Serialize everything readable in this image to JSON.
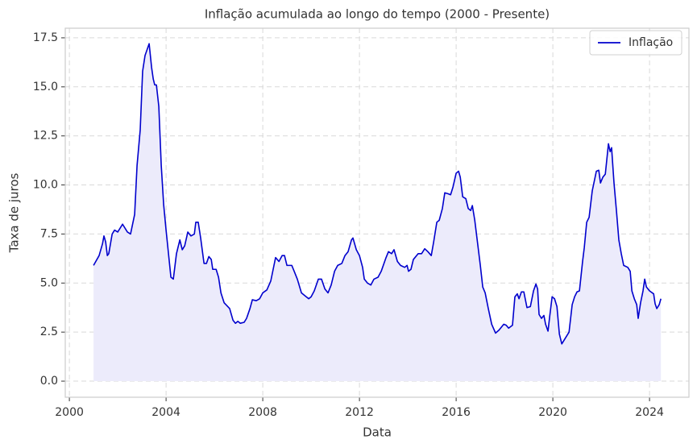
{
  "chart_data": {
    "type": "line",
    "title": "Inflação acumulada ao longo do tempo (2000 - Presente)",
    "xlabel": "Data",
    "ylabel": "Taxa de juros",
    "x": [
      2001.0,
      2001.23,
      2001.37,
      2001.43,
      2001.5,
      2001.57,
      2001.63,
      2001.77,
      2001.87,
      2002.0,
      2002.2,
      2002.4,
      2002.53,
      2002.7,
      2002.8,
      2002.93,
      2003.03,
      2003.13,
      2003.3,
      2003.4,
      2003.47,
      2003.53,
      2003.6,
      2003.7,
      2003.8,
      2003.9,
      2004.0,
      2004.1,
      2004.2,
      2004.3,
      2004.43,
      2004.57,
      2004.67,
      2004.77,
      2004.9,
      2005.03,
      2005.17,
      2005.23,
      2005.33,
      2005.43,
      2005.57,
      2005.67,
      2005.77,
      2005.87,
      2005.93,
      2006.07,
      2006.17,
      2006.27,
      2006.4,
      2006.63,
      2006.77,
      2006.87,
      2006.97,
      2007.07,
      2007.23,
      2007.33,
      2007.47,
      2007.57,
      2007.73,
      2007.87,
      2008.0,
      2008.17,
      2008.33,
      2008.53,
      2008.67,
      2008.8,
      2008.9,
      2009.0,
      2009.2,
      2009.3,
      2009.43,
      2009.6,
      2009.8,
      2009.9,
      2010.0,
      2010.13,
      2010.3,
      2010.43,
      2010.57,
      2010.7,
      2010.83,
      2010.97,
      2011.1,
      2011.27,
      2011.4,
      2011.53,
      2011.67,
      2011.73,
      2011.87,
      2012.0,
      2012.13,
      2012.2,
      2012.33,
      2012.47,
      2012.6,
      2012.77,
      2012.9,
      2013.1,
      2013.2,
      2013.33,
      2013.43,
      2013.57,
      2013.7,
      2013.87,
      2013.97,
      2014.03,
      2014.13,
      2014.23,
      2014.43,
      2014.57,
      2014.7,
      2014.83,
      2014.97,
      2015.07,
      2015.2,
      2015.3,
      2015.43,
      2015.53,
      2015.67,
      2015.77,
      2015.87,
      2016.0,
      2016.1,
      2016.17,
      2016.27,
      2016.4,
      2016.5,
      2016.6,
      2016.67,
      2016.77,
      2016.9,
      2017.0,
      2017.1,
      2017.2,
      2017.33,
      2017.47,
      2017.63,
      2017.77,
      2017.97,
      2018.07,
      2018.17,
      2018.33,
      2018.43,
      2018.53,
      2018.6,
      2018.7,
      2018.8,
      2018.93,
      2019.07,
      2019.2,
      2019.3,
      2019.37,
      2019.43,
      2019.53,
      2019.63,
      2019.7,
      2019.8,
      2019.87,
      2019.97,
      2020.07,
      2020.17,
      2020.27,
      2020.37,
      2020.47,
      2020.57,
      2020.67,
      2020.8,
      2020.9,
      2021.0,
      2021.1,
      2021.23,
      2021.3,
      2021.4,
      2021.5,
      2021.63,
      2021.8,
      2021.9,
      2021.97,
      2022.07,
      2022.17,
      2022.3,
      2022.37,
      2022.43,
      2022.53,
      2022.63,
      2022.73,
      2022.83,
      2022.93,
      2023.1,
      2023.2,
      2023.27,
      2023.37,
      2023.47,
      2023.53,
      2023.63,
      2023.73,
      2023.8,
      2023.87,
      2024.0,
      2024.17,
      2024.23,
      2024.3,
      2024.4,
      2024.47
    ],
    "series": [
      {
        "name": "Inflação",
        "color": "#0000cd",
        "fill": "#ecebfb",
        "values": [
          5.9,
          6.4,
          7.0,
          7.4,
          7.1,
          6.4,
          6.5,
          7.5,
          7.7,
          7.6,
          8.0,
          7.6,
          7.5,
          8.5,
          11.0,
          12.8,
          15.8,
          16.6,
          17.2,
          16.0,
          15.4,
          15.1,
          15.1,
          14.0,
          11.0,
          9.0,
          7.7,
          6.5,
          5.3,
          5.2,
          6.5,
          7.2,
          6.7,
          6.9,
          7.6,
          7.4,
          7.5,
          8.1,
          8.1,
          7.3,
          6.0,
          6.0,
          6.35,
          6.2,
          5.7,
          5.7,
          5.3,
          4.5,
          4.0,
          3.7,
          3.1,
          2.95,
          3.05,
          2.95,
          3.0,
          3.2,
          3.7,
          4.15,
          4.1,
          4.2,
          4.5,
          4.65,
          5.1,
          6.3,
          6.1,
          6.4,
          6.4,
          5.9,
          5.9,
          5.6,
          5.2,
          4.5,
          4.3,
          4.2,
          4.3,
          4.6,
          5.2,
          5.2,
          4.7,
          4.5,
          4.9,
          5.6,
          5.9,
          6.0,
          6.4,
          6.6,
          7.2,
          7.3,
          6.7,
          6.4,
          5.8,
          5.2,
          5.0,
          4.9,
          5.2,
          5.3,
          5.6,
          6.3,
          6.6,
          6.5,
          6.7,
          6.1,
          5.9,
          5.8,
          5.9,
          5.6,
          5.7,
          6.2,
          6.5,
          6.5,
          6.75,
          6.6,
          6.4,
          7.1,
          8.1,
          8.2,
          8.8,
          9.6,
          9.55,
          9.5,
          9.9,
          10.6,
          10.7,
          10.4,
          9.4,
          9.3,
          8.8,
          8.7,
          8.95,
          8.2,
          6.9,
          5.9,
          4.8,
          4.5,
          3.7,
          2.9,
          2.45,
          2.6,
          2.9,
          2.85,
          2.7,
          2.85,
          4.3,
          4.45,
          4.2,
          4.55,
          4.55,
          3.75,
          3.8,
          4.6,
          4.95,
          4.7,
          3.4,
          3.2,
          3.35,
          2.9,
          2.55,
          3.3,
          4.3,
          4.2,
          3.8,
          2.4,
          1.9,
          2.1,
          2.3,
          2.5,
          3.9,
          4.3,
          4.55,
          4.6,
          6.1,
          6.8,
          8.1,
          8.35,
          9.7,
          10.7,
          10.75,
          10.1,
          10.4,
          10.55,
          12.1,
          11.7,
          11.9,
          10.1,
          8.7,
          7.2,
          6.5,
          5.9,
          5.8,
          5.6,
          4.6,
          4.2,
          3.9,
          3.2,
          4.0,
          4.6,
          5.2,
          4.8,
          4.6,
          4.45,
          3.95,
          3.7,
          3.9,
          4.2
        ]
      }
    ],
    "xlim": [
      1999.83,
      2025.63
    ],
    "ylim": [
      -0.82,
      17.99
    ],
    "xticks": [
      2000,
      2004,
      2008,
      2012,
      2016,
      2020,
      2024
    ],
    "yticks": [
      {
        "value": 0,
        "label": "0.0"
      },
      2.5,
      {
        "value": 5,
        "label": "5.0"
      },
      7.5,
      {
        "value": 10,
        "label": "10.0"
      },
      12.5,
      {
        "value": 15,
        "label": "15.0"
      },
      17.5
    ],
    "grid": true,
    "legend": "upper right"
  }
}
